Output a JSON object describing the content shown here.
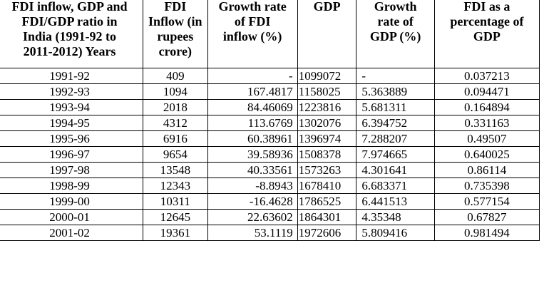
{
  "table": {
    "headers": [
      [
        "FDI inflow, GDP and",
        "FDI/GDP ratio in",
        "India (1991-92 to",
        "2011-2012) Years"
      ],
      [
        "FDI",
        "Inflow (in",
        "rupees",
        "crore)"
      ],
      [
        "Growth rate",
        "of FDI",
        "inflow (%)"
      ],
      [
        "GDP"
      ],
      [
        "Growth",
        "rate of",
        "GDP (%)"
      ],
      [
        "FDI as a",
        "percentage of",
        "GDP"
      ]
    ],
    "rows": [
      [
        "1991-92",
        "409",
        "-",
        "1099072",
        "-",
        "0.037213"
      ],
      [
        "1992-93",
        "1094",
        "167.4817",
        "1158025",
        "5.363889",
        "0.094471"
      ],
      [
        "1993-94",
        "2018",
        "84.46069",
        "1223816",
        "5.681311",
        "0.164894"
      ],
      [
        "1994-95",
        "4312",
        "113.6769",
        "1302076",
        "6.394752",
        "0.331163"
      ],
      [
        "1995-96",
        "6916",
        "60.38961",
        "1396974",
        "7.288207",
        "0.49507"
      ],
      [
        "1996-97",
        "9654",
        "39.58936",
        "1508378",
        "7.974665",
        "0.640025"
      ],
      [
        "1997-98",
        "13548",
        "40.33561",
        "1573263",
        "4.301641",
        "0.86114"
      ],
      [
        "1998-99",
        "12343",
        "-8.8943",
        "1678410",
        "6.683371",
        "0.735398"
      ],
      [
        "1999-00",
        "10311",
        "-16.4628",
        "1786525",
        "6.441513",
        "0.577154"
      ],
      [
        "2000-01",
        "12645",
        "22.63602",
        "1864301",
        "4.35348",
        "0.67827"
      ],
      [
        "2001-02",
        "19361",
        "53.1119",
        "1972606",
        "5.809416",
        "0.981494"
      ]
    ]
  }
}
